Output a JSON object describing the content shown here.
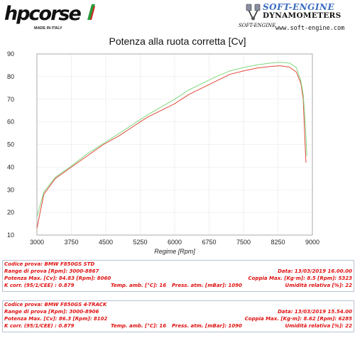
{
  "header": {
    "brand": "hpcorse",
    "made_in": "MADE IN ITALY",
    "dyno_name": "SOFT-ENGINE",
    "dyno_type": "DYNAMOMETERS",
    "dyno_small": "SOFT-ENGINE",
    "dyno_url": "www.soft-engine.com"
  },
  "colors": {
    "run1": "#e0483a",
    "run2": "#7fd87f",
    "text_red": "#e01010",
    "flag_green": "#2c9a3b",
    "flag_red": "#d42020",
    "dyno_blue": "#3a6cc0"
  },
  "chart_data": {
    "type": "line",
    "title": "Potenza alla ruota corretta [Cv]",
    "xlabel": "Regime [Rpm]",
    "ylabel": "",
    "xlim": [
      3000,
      9000
    ],
    "ylim": [
      10,
      90
    ],
    "xticks": [
      3000,
      3750,
      4500,
      5250,
      6000,
      6750,
      7500,
      8250,
      9000
    ],
    "yticks": [
      10,
      20,
      30,
      40,
      50,
      60,
      70,
      80,
      90
    ],
    "grid": true,
    "series": [
      {
        "color": "#e0483a",
        "x": [
          3000,
          3150,
          3400,
          3750,
          4100,
          4450,
          4800,
          5100,
          5400,
          5700,
          6000,
          6300,
          6600,
          6900,
          7200,
          7500,
          7800,
          8100,
          8300,
          8500,
          8650,
          8750,
          8800,
          8830,
          8860
        ],
        "y": [
          13,
          28,
          35,
          40,
          45,
          50,
          54,
          58,
          62,
          65,
          68,
          72,
          75,
          78,
          81,
          82.5,
          83.8,
          84.5,
          84.8,
          84.2,
          82,
          77,
          70,
          55,
          42
        ]
      },
      {
        "color": "#7fd87f",
        "x": [
          3000,
          3150,
          3400,
          3750,
          4100,
          4450,
          4800,
          5100,
          5400,
          5700,
          6000,
          6300,
          6600,
          6900,
          7200,
          7500,
          7800,
          8100,
          8300,
          8500,
          8650,
          8750,
          8800,
          8850,
          8880
        ],
        "y": [
          18,
          29,
          35.5,
          40.5,
          46,
          50.5,
          55,
          59,
          63,
          66.5,
          70,
          74,
          77,
          80,
          82.5,
          84,
          85.2,
          86,
          86.3,
          86,
          84,
          78,
          72,
          58,
          45
        ]
      }
    ]
  },
  "tests": [
    {
      "codice": "Codice prova: BMW F850GS STD",
      "range": "Range di prova [Rpm]: 3000-8867",
      "data": "Data: 13/03/2019   16.00.00",
      "potenza": "Potenza Max. [Cv]: 84.83   [Rpm]: 8060",
      "coppia": "Coppia Max. [Kg·m]: 8.5   [Rpm]: 5323",
      "kcorr": "K corr. (95/1/CEE) : 0.879",
      "temp": "Temp. amb. [°C]: 16",
      "press": "Press. atm. [mBar]: 1090",
      "umid": "Umidità relativa [%]: 22"
    },
    {
      "codice": "Codice prova: BMW F850GS 4-TRACK",
      "range": "Range di prova [Rpm]: 3000-8906",
      "data": "Data: 13/03/2019   15.54.00",
      "potenza": "Potenza Max. [Cv]: 86.3   [Rpm]: 8102",
      "coppia": "Coppia Max. [Kg·m]: 8.62   [Rpm]: 6285",
      "kcorr": "K corr. (95/1/CEE) : 0.879",
      "temp": "Temp. amb. [°C]: 16",
      "press": "Press. atm. [mBar]: 1090",
      "umid": "Umidità relativa [%]: 22"
    }
  ]
}
